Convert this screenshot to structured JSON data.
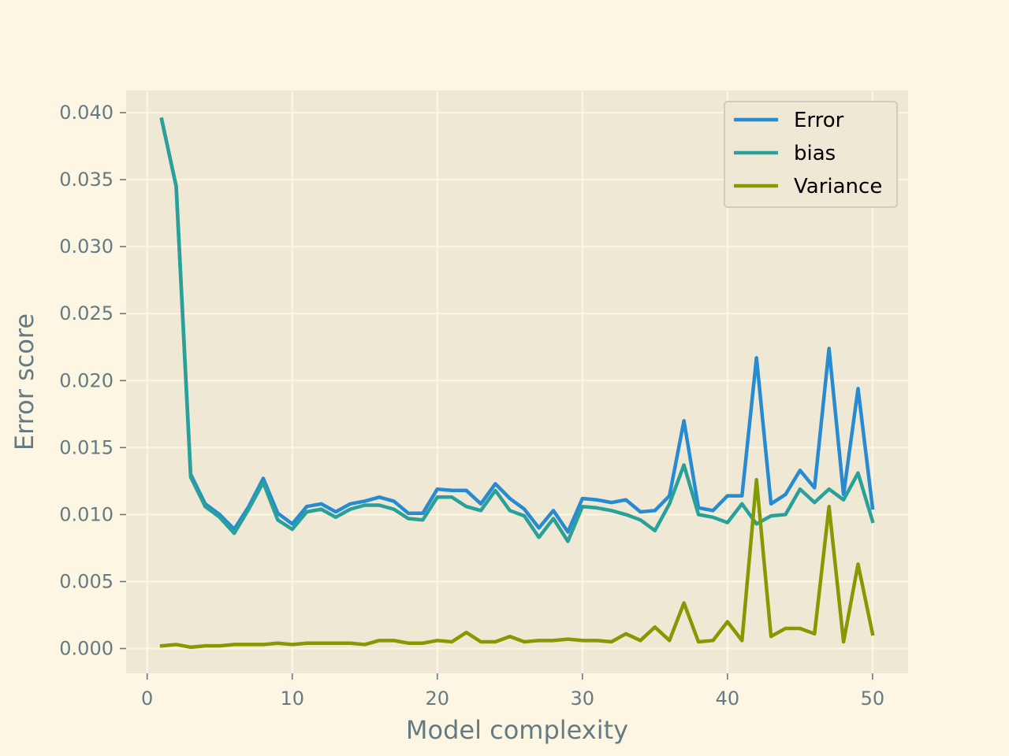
{
  "chart_data": {
    "type": "line",
    "title": "",
    "xlabel": "Model complexity",
    "ylabel": "Error score",
    "xlim": [
      -1.45,
      52.45
    ],
    "ylim": [
      -0.00185,
      0.04165
    ],
    "xticks": [
      0,
      10,
      20,
      30,
      40,
      50
    ],
    "xtick_labels": [
      "0",
      "10",
      "20",
      "30",
      "40",
      "50"
    ],
    "yticks": [
      0,
      0.005,
      0.01,
      0.015,
      0.02,
      0.025,
      0.03,
      0.035,
      0.04
    ],
    "ytick_labels": [
      "0.000",
      "0.005",
      "0.010",
      "0.015",
      "0.020",
      "0.025",
      "0.030",
      "0.035",
      "0.040"
    ],
    "grid": true,
    "legend_position": "top-right",
    "x": [
      1,
      2,
      3,
      4,
      5,
      6,
      7,
      8,
      9,
      10,
      11,
      12,
      13,
      14,
      15,
      16,
      17,
      18,
      19,
      20,
      21,
      22,
      23,
      24,
      25,
      26,
      27,
      28,
      29,
      30,
      31,
      32,
      33,
      34,
      35,
      36,
      37,
      38,
      39,
      40,
      41,
      42,
      43,
      44,
      45,
      46,
      47,
      48,
      49,
      50
    ],
    "series": [
      {
        "name": "Error",
        "color": "#268bd2",
        "values": [
          0.0395,
          0.0345,
          0.013,
          0.0108,
          0.01,
          0.0089,
          0.0106,
          0.0127,
          0.0101,
          0.0093,
          0.0106,
          0.0108,
          0.0102,
          0.0108,
          0.011,
          0.0113,
          0.011,
          0.0101,
          0.0101,
          0.0119,
          0.0118,
          0.0118,
          0.0108,
          0.0123,
          0.0112,
          0.0104,
          0.009,
          0.0103,
          0.0087,
          0.0112,
          0.0111,
          0.0109,
          0.0111,
          0.0102,
          0.0103,
          0.0114,
          0.017,
          0.0105,
          0.0103,
          0.0114,
          0.0114,
          0.0217,
          0.0108,
          0.0115,
          0.0133,
          0.012,
          0.0224,
          0.0115,
          0.0194,
          0.0105
        ]
      },
      {
        "name": "bias",
        "color": "#2aa198",
        "values": [
          0.0395,
          0.0345,
          0.0128,
          0.0106,
          0.0098,
          0.0086,
          0.0104,
          0.0124,
          0.0096,
          0.0089,
          0.0102,
          0.0104,
          0.0098,
          0.0104,
          0.0107,
          0.0107,
          0.0104,
          0.0097,
          0.0096,
          0.0113,
          0.0113,
          0.0106,
          0.0103,
          0.0118,
          0.0103,
          0.0099,
          0.0083,
          0.0097,
          0.008,
          0.0106,
          0.0105,
          0.0103,
          0.01,
          0.0096,
          0.0088,
          0.0108,
          0.0137,
          0.01,
          0.0098,
          0.0094,
          0.0108,
          0.0093,
          0.0099,
          0.01,
          0.0119,
          0.0109,
          0.0119,
          0.0111,
          0.0131,
          0.0095
        ]
      },
      {
        "name": "Variance",
        "color": "#859900",
        "values": [
          0.0002,
          0.0003,
          0.0001,
          0.0002,
          0.0002,
          0.0003,
          0.0003,
          0.0003,
          0.0004,
          0.0003,
          0.0004,
          0.0004,
          0.0004,
          0.0004,
          0.0003,
          0.0006,
          0.0006,
          0.0004,
          0.0004,
          0.0006,
          0.0005,
          0.0012,
          0.0005,
          0.0005,
          0.0009,
          0.0005,
          0.0006,
          0.0006,
          0.0007,
          0.0006,
          0.0006,
          0.0005,
          0.0011,
          0.0006,
          0.0016,
          0.0006,
          0.0034,
          0.0005,
          0.0006,
          0.002,
          0.0006,
          0.0126,
          0.0009,
          0.0015,
          0.0015,
          0.0011,
          0.0106,
          0.0005,
          0.0063,
          0.0011
        ]
      }
    ]
  },
  "colors": {
    "page_background": "#fdf6e3",
    "plot_background": "#eee8d5",
    "grid": "#fdf6e3",
    "text": "#657b83"
  }
}
